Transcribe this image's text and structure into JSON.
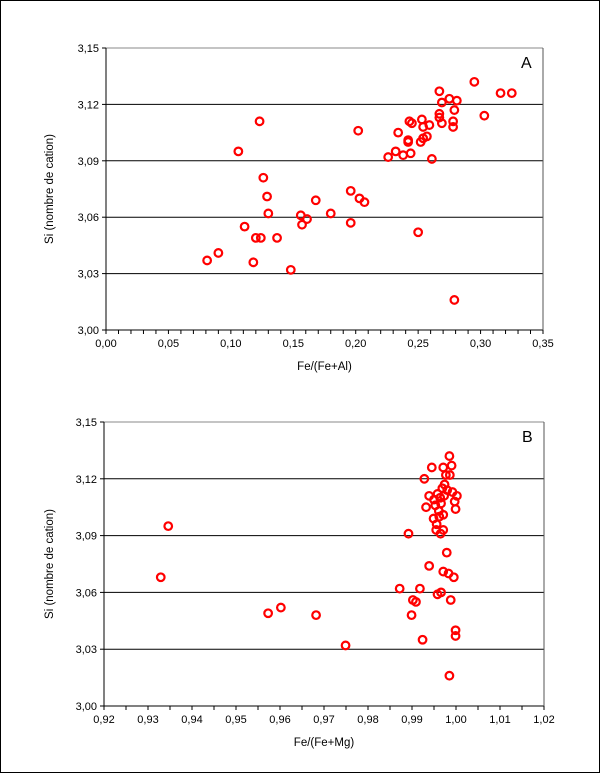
{
  "chart_data": [
    {
      "type": "scatter",
      "panel_label": "A",
      "xlabel": "Fe/(Fe+Al)",
      "ylabel": "Si  (nombre de cation)",
      "xlim": [
        0,
        0.35
      ],
      "ylim": [
        3.0,
        3.15
      ],
      "xticks": [
        "0,00",
        "0,05",
        "0,10",
        "0,15",
        "0,20",
        "0,25",
        "0,30",
        "0,35"
      ],
      "yticks": [
        "3,00",
        "3,03",
        "3,06",
        "3,09",
        "3,12",
        "3,15"
      ],
      "grid": "horizontal",
      "marker_color": "#ff0000",
      "points": [
        [
          0.081,
          3.037
        ],
        [
          0.09,
          3.041
        ],
        [
          0.106,
          3.095
        ],
        [
          0.123,
          3.111
        ],
        [
          0.111,
          3.055
        ],
        [
          0.126,
          3.081
        ],
        [
          0.129,
          3.071
        ],
        [
          0.13,
          3.062
        ],
        [
          0.12,
          3.049
        ],
        [
          0.124,
          3.049
        ],
        [
          0.118,
          3.036
        ],
        [
          0.137,
          3.049
        ],
        [
          0.148,
          3.032
        ],
        [
          0.156,
          3.061
        ],
        [
          0.157,
          3.056
        ],
        [
          0.161,
          3.059
        ],
        [
          0.168,
          3.069
        ],
        [
          0.18,
          3.062
        ],
        [
          0.196,
          3.074
        ],
        [
          0.203,
          3.07
        ],
        [
          0.207,
          3.068
        ],
        [
          0.196,
          3.057
        ],
        [
          0.202,
          3.106
        ],
        [
          0.25,
          3.052
        ],
        [
          0.279,
          3.016
        ],
        [
          0.226,
          3.092
        ],
        [
          0.232,
          3.095
        ],
        [
          0.238,
          3.093
        ],
        [
          0.244,
          3.094
        ],
        [
          0.261,
          3.091
        ],
        [
          0.242,
          3.101
        ],
        [
          0.242,
          3.1
        ],
        [
          0.252,
          3.1
        ],
        [
          0.254,
          3.102
        ],
        [
          0.257,
          3.103
        ],
        [
          0.234,
          3.105
        ],
        [
          0.243,
          3.111
        ],
        [
          0.245,
          3.11
        ],
        [
          0.253,
          3.112
        ],
        [
          0.254,
          3.108
        ],
        [
          0.259,
          3.109
        ],
        [
          0.267,
          3.127
        ],
        [
          0.269,
          3.121
        ],
        [
          0.275,
          3.123
        ],
        [
          0.281,
          3.122
        ],
        [
          0.267,
          3.115
        ],
        [
          0.267,
          3.113
        ],
        [
          0.269,
          3.11
        ],
        [
          0.279,
          3.117
        ],
        [
          0.278,
          3.111
        ],
        [
          0.278,
          3.108
        ],
        [
          0.295,
          3.132
        ],
        [
          0.303,
          3.114
        ],
        [
          0.316,
          3.126
        ],
        [
          0.325,
          3.126
        ]
      ]
    },
    {
      "type": "scatter",
      "panel_label": "B",
      "xlabel": "Fe/(Fe+Mg)",
      "ylabel": "Si  (nombre de cation)",
      "xlim": [
        0.92,
        1.02
      ],
      "ylim": [
        3.0,
        3.15
      ],
      "xticks": [
        "0,92",
        "0,93",
        "0,94",
        "0,95",
        "0,96",
        "0,97",
        "0,98",
        "0,99",
        "1,00",
        "1,01",
        "1,02"
      ],
      "yticks": [
        "3,00",
        "3,03",
        "3,06",
        "3,09",
        "3,12",
        "3,15"
      ],
      "grid": "horizontal",
      "marker_color": "#ff0000",
      "points": [
        [
          0.9329,
          3.068
        ],
        [
          0.9346,
          3.095
        ],
        [
          0.9573,
          3.049
        ],
        [
          0.9602,
          3.052
        ],
        [
          0.9682,
          3.048
        ],
        [
          0.9749,
          3.032
        ],
        [
          0.9985,
          3.132
        ],
        [
          0.9945,
          3.126
        ],
        [
          0.9971,
          3.126
        ],
        [
          0.999,
          3.127
        ],
        [
          0.9928,
          3.12
        ],
        [
          0.9977,
          3.122
        ],
        [
          0.9986,
          3.122
        ],
        [
          0.9974,
          3.117
        ],
        [
          0.9969,
          3.115
        ],
        [
          0.9939,
          3.111
        ],
        [
          0.995,
          3.109
        ],
        [
          0.9964,
          3.11
        ],
        [
          0.9973,
          3.111
        ],
        [
          0.9992,
          3.113
        ],
        [
          1.0002,
          3.111
        ],
        [
          0.9997,
          3.108
        ],
        [
          0.9999,
          3.104
        ],
        [
          0.9932,
          3.105
        ],
        [
          0.9961,
          3.103
        ],
        [
          0.9971,
          3.101
        ],
        [
          0.9949,
          3.099
        ],
        [
          0.9956,
          3.096
        ],
        [
          0.9971,
          3.093
        ],
        [
          0.9955,
          3.093
        ],
        [
          0.9965,
          3.091
        ],
        [
          0.9892,
          3.091
        ],
        [
          0.9979,
          3.081
        ],
        [
          0.9939,
          3.074
        ],
        [
          0.9971,
          3.071
        ],
        [
          0.9983,
          3.07
        ],
        [
          0.9995,
          3.068
        ],
        [
          0.9872,
          3.062
        ],
        [
          0.9918,
          3.062
        ],
        [
          0.9958,
          3.059
        ],
        [
          0.9966,
          3.06
        ],
        [
          0.9902,
          3.056
        ],
        [
          0.9909,
          3.055
        ],
        [
          0.9988,
          3.056
        ],
        [
          0.9899,
          3.048
        ],
        [
          0.9999,
          3.04
        ],
        [
          0.9999,
          3.037
        ],
        [
          0.9924,
          3.035
        ],
        [
          0.9985,
          3.016
        ],
        [
          0.9966,
          3.107
        ],
        [
          0.9958,
          3.112
        ],
        [
          0.998,
          3.114
        ],
        [
          0.9962,
          3.1
        ],
        [
          0.9953,
          3.106
        ]
      ]
    }
  ]
}
